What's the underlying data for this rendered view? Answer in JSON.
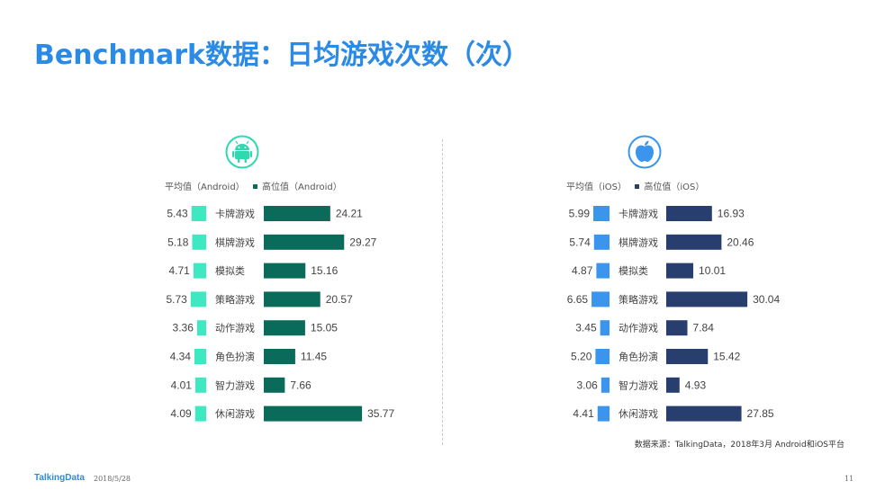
{
  "title": "Benchmark数据：日均游戏次数（次）",
  "footer": {
    "brand": "TalkingData",
    "date": "2018/5/28",
    "page": "11"
  },
  "source": "数据来源：TalkingData，2018年3月 Android和iOS平台",
  "icons": {
    "android": "android-logo-icon",
    "ios": "apple-logo-icon"
  },
  "chart_data": [
    {
      "type": "bar",
      "platform": "Android",
      "categories": [
        "卡牌游戏",
        "棋牌游戏",
        "模拟类",
        "策略游戏",
        "动作游戏",
        "角色扮演",
        "智力游戏",
        "休闲游戏"
      ],
      "series": [
        {
          "name": "平均值（Android）",
          "color": "#3ee8c0",
          "values": [
            5.43,
            5.18,
            4.71,
            5.73,
            3.36,
            4.34,
            4.01,
            4.09
          ],
          "labels": [
            "5.43",
            "5.18",
            "4.71",
            "5.73",
            "3.36",
            "4.34",
            "4.01",
            "4.09"
          ]
        },
        {
          "name": "高位值（Android）",
          "color": "#0b6b5b",
          "values": [
            24.21,
            29.27,
            15.16,
            20.57,
            15.05,
            11.45,
            7.66,
            35.77
          ],
          "labels": [
            "24.21",
            "29.27",
            "15.16",
            "20.57",
            "15.05",
            "11.45",
            "7.66",
            "35.77"
          ]
        }
      ]
    },
    {
      "type": "bar",
      "platform": "iOS",
      "categories": [
        "卡牌游戏",
        "棋牌游戏",
        "模拟类",
        "策略游戏",
        "动作游戏",
        "角色扮演",
        "智力游戏",
        "休闲游戏"
      ],
      "series": [
        {
          "name": "平均值（iOS）",
          "color": "#3b95ec",
          "values": [
            5.99,
            5.74,
            4.87,
            6.65,
            3.45,
            5.2,
            3.06,
            4.41
          ],
          "labels": [
            "5.99",
            "5.74",
            "4.87",
            "6.65",
            "3.45",
            "5.20",
            "3.06",
            "4.41"
          ]
        },
        {
          "name": "高位值（iOS）",
          "color": "#283e6e",
          "values": [
            16.93,
            20.46,
            10.01,
            30.04,
            7.84,
            15.42,
            4.93,
            27.85
          ],
          "labels": [
            "16.93",
            "20.46",
            "10.01",
            "30.04",
            "7.84",
            "15.42",
            "4.93",
            "27.85"
          ]
        }
      ]
    }
  ]
}
